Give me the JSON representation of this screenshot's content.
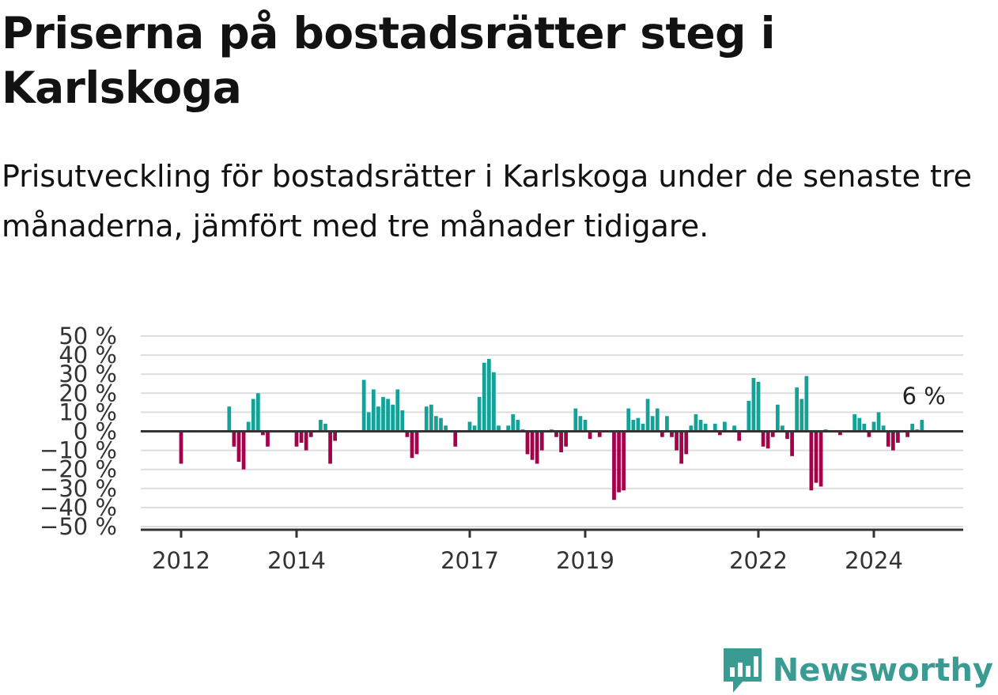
{
  "title": "Priserna på bostadsrätter steg i Karlskoga",
  "subtitle": "Prisutveckling för bostadsrätter i Karlskoga under de senaste tre månaderna, jämfört med tre månader tidigare.",
  "brand": {
    "name": "Newsworthy"
  },
  "colors": {
    "positive": "#13a198",
    "negative": "#a5004a",
    "grid": "#dddddd",
    "zero_line": "#333333",
    "brand": "#3a9b93"
  },
  "chart_data": {
    "type": "bar",
    "title": "Priserna på bostadsrätter steg i Karlskoga",
    "ylim": [
      -50,
      50
    ],
    "y_ticks": [
      50,
      40,
      30,
      20,
      10,
      0,
      -10,
      -20,
      -30,
      -40,
      -50
    ],
    "y_tick_labels": [
      "50 %",
      "40 %",
      "30 %",
      "20 %",
      "10 %",
      "0 %",
      "−10 %",
      "−20 %",
      "−30 %",
      "−40 %",
      "−50 %"
    ],
    "x_ticks": [
      2012,
      2014,
      2017,
      2019,
      2022,
      2024
    ],
    "x_tick_labels": [
      "2012",
      "2014",
      "2017",
      "2019",
      "2022",
      "2024"
    ],
    "annotation": "6 %",
    "series": [
      {
        "values": [
          {
            "x": "2012-01",
            "y": -17
          },
          {
            "x": "2012-11",
            "y": 13
          },
          {
            "x": "2012-12",
            "y": -8
          },
          {
            "x": "2013-01",
            "y": -16
          },
          {
            "x": "2013-02",
            "y": -20
          },
          {
            "x": "2013-03",
            "y": 5
          },
          {
            "x": "2013-04",
            "y": 17
          },
          {
            "x": "2013-05",
            "y": 20
          },
          {
            "x": "2013-06",
            "y": -2
          },
          {
            "x": "2013-07",
            "y": -8
          },
          {
            "x": "2014-01",
            "y": -8
          },
          {
            "x": "2014-02",
            "y": -6
          },
          {
            "x": "2014-03",
            "y": -10
          },
          {
            "x": "2014-04",
            "y": -3
          },
          {
            "x": "2014-06",
            "y": 6
          },
          {
            "x": "2014-07",
            "y": 4
          },
          {
            "x": "2014-08",
            "y": -17
          },
          {
            "x": "2014-09",
            "y": -5
          },
          {
            "x": "2015-03",
            "y": 27
          },
          {
            "x": "2015-04",
            "y": 10
          },
          {
            "x": "2015-05",
            "y": 22
          },
          {
            "x": "2015-06",
            "y": 13
          },
          {
            "x": "2015-07",
            "y": 18
          },
          {
            "x": "2015-08",
            "y": 17
          },
          {
            "x": "2015-09",
            "y": 14
          },
          {
            "x": "2015-10",
            "y": 22
          },
          {
            "x": "2015-11",
            "y": 11
          },
          {
            "x": "2015-12",
            "y": -3
          },
          {
            "x": "2016-01",
            "y": -14
          },
          {
            "x": "2016-02",
            "y": -12
          },
          {
            "x": "2016-04",
            "y": 13
          },
          {
            "x": "2016-05",
            "y": 14
          },
          {
            "x": "2016-06",
            "y": 8
          },
          {
            "x": "2016-07",
            "y": 7
          },
          {
            "x": "2016-08",
            "y": 3
          },
          {
            "x": "2016-10",
            "y": -8
          },
          {
            "x": "2017-01",
            "y": 5
          },
          {
            "x": "2017-02",
            "y": 3
          },
          {
            "x": "2017-03",
            "y": 18
          },
          {
            "x": "2017-04",
            "y": 36
          },
          {
            "x": "2017-05",
            "y": 38
          },
          {
            "x": "2017-06",
            "y": 31
          },
          {
            "x": "2017-07",
            "y": 3
          },
          {
            "x": "2017-09",
            "y": 3
          },
          {
            "x": "2017-10",
            "y": 9
          },
          {
            "x": "2017-11",
            "y": 6
          },
          {
            "x": "2017-12",
            "y": 1
          },
          {
            "x": "2018-01",
            "y": -12
          },
          {
            "x": "2018-02",
            "y": -15
          },
          {
            "x": "2018-03",
            "y": -17
          },
          {
            "x": "2018-04",
            "y": -10
          },
          {
            "x": "2018-06",
            "y": 1
          },
          {
            "x": "2018-07",
            "y": -3
          },
          {
            "x": "2018-08",
            "y": -11
          },
          {
            "x": "2018-09",
            "y": -8
          },
          {
            "x": "2018-11",
            "y": 12
          },
          {
            "x": "2018-12",
            "y": 8
          },
          {
            "x": "2019-01",
            "y": 6
          },
          {
            "x": "2019-02",
            "y": -4
          },
          {
            "x": "2019-04",
            "y": -3
          },
          {
            "x": "2019-07",
            "y": -36
          },
          {
            "x": "2019-08",
            "y": -32
          },
          {
            "x": "2019-09",
            "y": -31
          },
          {
            "x": "2019-10",
            "y": 12
          },
          {
            "x": "2019-11",
            "y": 6
          },
          {
            "x": "2019-12",
            "y": 7
          },
          {
            "x": "2020-01",
            "y": 4
          },
          {
            "x": "2020-02",
            "y": 17
          },
          {
            "x": "2020-03",
            "y": 8
          },
          {
            "x": "2020-04",
            "y": 12
          },
          {
            "x": "2020-05",
            "y": -3
          },
          {
            "x": "2020-06",
            "y": 8
          },
          {
            "x": "2020-07",
            "y": -3
          },
          {
            "x": "2020-08",
            "y": -10
          },
          {
            "x": "2020-09",
            "y": -17
          },
          {
            "x": "2020-10",
            "y": -12
          },
          {
            "x": "2020-11",
            "y": 3
          },
          {
            "x": "2020-12",
            "y": 9
          },
          {
            "x": "2021-01",
            "y": 6
          },
          {
            "x": "2021-02",
            "y": 4
          },
          {
            "x": "2021-04",
            "y": 4
          },
          {
            "x": "2021-05",
            "y": -2
          },
          {
            "x": "2021-06",
            "y": 5
          },
          {
            "x": "2021-08",
            "y": 3
          },
          {
            "x": "2021-09",
            "y": -5
          },
          {
            "x": "2021-11",
            "y": 16
          },
          {
            "x": "2021-12",
            "y": 28
          },
          {
            "x": "2022-01",
            "y": 26
          },
          {
            "x": "2022-02",
            "y": -8
          },
          {
            "x": "2022-03",
            "y": -9
          },
          {
            "x": "2022-04",
            "y": -3
          },
          {
            "x": "2022-05",
            "y": 14
          },
          {
            "x": "2022-06",
            "y": 3
          },
          {
            "x": "2022-07",
            "y": -4
          },
          {
            "x": "2022-08",
            "y": -13
          },
          {
            "x": "2022-09",
            "y": 23
          },
          {
            "x": "2022-10",
            "y": 17
          },
          {
            "x": "2022-11",
            "y": 29
          },
          {
            "x": "2022-12",
            "y": -31
          },
          {
            "x": "2023-01",
            "y": -27
          },
          {
            "x": "2023-02",
            "y": -29
          },
          {
            "x": "2023-03",
            "y": 1
          },
          {
            "x": "2023-06",
            "y": -2
          },
          {
            "x": "2023-09",
            "y": 9
          },
          {
            "x": "2023-10",
            "y": 7
          },
          {
            "x": "2023-11",
            "y": 4
          },
          {
            "x": "2023-12",
            "y": -3
          },
          {
            "x": "2024-01",
            "y": 5
          },
          {
            "x": "2024-02",
            "y": 10
          },
          {
            "x": "2024-03",
            "y": 3
          },
          {
            "x": "2024-04",
            "y": -8
          },
          {
            "x": "2024-05",
            "y": -10
          },
          {
            "x": "2024-06",
            "y": -6
          },
          {
            "x": "2024-08",
            "y": -3
          },
          {
            "x": "2024-09",
            "y": 4
          },
          {
            "x": "2024-10",
            "y": 1
          },
          {
            "x": "2024-11",
            "y": 6
          }
        ]
      }
    ]
  }
}
